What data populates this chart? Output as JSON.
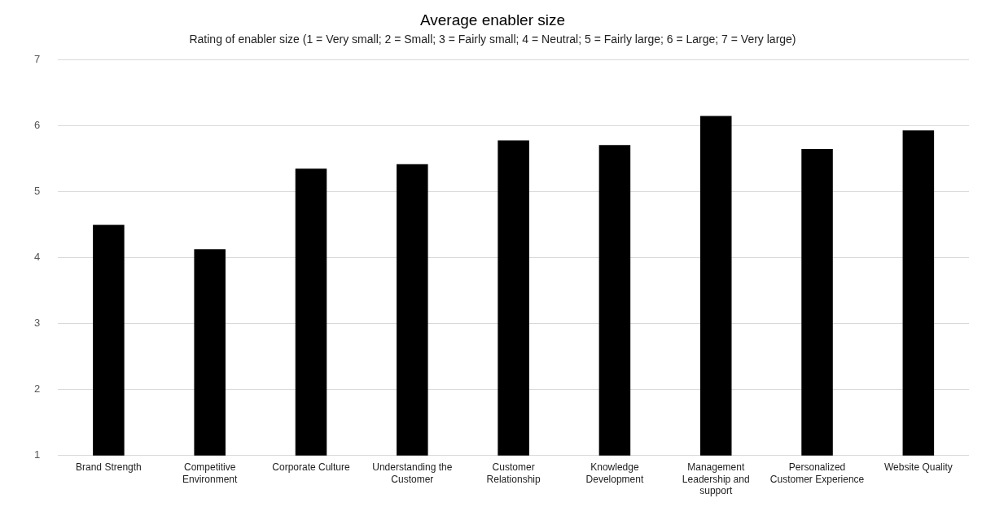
{
  "chart_data": {
    "type": "bar",
    "title": "Average enabler size",
    "subtitle": "Rating of enabler size (1 = Very small; 2 = Small; 3 = Fairly small; 4 = Neutral; 5 = Fairly large; 6 = Large; 7 = Very large)",
    "categories": [
      "Brand Strength",
      "Competitive Environment",
      "Corporate Culture",
      "Understanding the Customer",
      "Customer Relationship",
      "Knowledge Development",
      "Management Leadership and support",
      "Personalized Customer Experience",
      "Website Quality"
    ],
    "values": [
      4.5,
      4.13,
      5.35,
      5.42,
      5.78,
      5.71,
      6.15,
      5.65,
      5.93
    ],
    "color": "#000000",
    "ylim": [
      1,
      7
    ],
    "yticks": [
      1,
      2,
      3,
      4,
      5,
      6,
      7
    ],
    "grid": "y",
    "legend": false
  }
}
